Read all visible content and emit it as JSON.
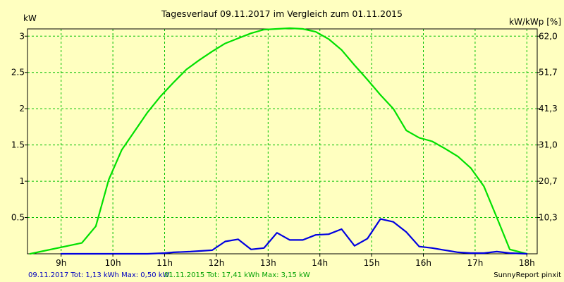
{
  "chart_data": {
    "type": "line",
    "title": "Tagesverlauf 09.11.2017 im Vergleich zum 01.11.2015",
    "ylabel_left": "kW",
    "ylabel_right": "kW/kWp [%]",
    "xlim": [
      8.35,
      18.2
    ],
    "ylim": [
      0,
      3.1
    ],
    "grid": true,
    "x_ticks": [
      {
        "value": 9,
        "label": "9h"
      },
      {
        "value": 10,
        "label": "10h"
      },
      {
        "value": 11,
        "label": "11h"
      },
      {
        "value": 12,
        "label": "12h"
      },
      {
        "value": 13,
        "label": "13h"
      },
      {
        "value": 14,
        "label": "14h"
      },
      {
        "value": 15,
        "label": "15h"
      },
      {
        "value": 16,
        "label": "16h"
      },
      {
        "value": 17,
        "label": "17h"
      },
      {
        "value": 18,
        "label": "18h"
      }
    ],
    "y_ticks_left": [
      {
        "value": 0.5,
        "label": "0.5"
      },
      {
        "value": 1,
        "label": "1"
      },
      {
        "value": 1.5,
        "label": "1.5"
      },
      {
        "value": 2,
        "label": "2"
      },
      {
        "value": 2.5,
        "label": "2.5"
      },
      {
        "value": 3,
        "label": "3"
      }
    ],
    "y_ticks_right": [
      {
        "value": 0.5,
        "label": "10,3"
      },
      {
        "value": 1,
        "label": "20,7"
      },
      {
        "value": 1.5,
        "label": "31,0"
      },
      {
        "value": 2,
        "label": "41,3"
      },
      {
        "value": 2.5,
        "label": "51,7"
      },
      {
        "value": 3,
        "label": "62,0"
      }
    ],
    "series": [
      {
        "color": "#00E000",
        "x": [
          8.4,
          9.4,
          9.67,
          9.92,
          10.17,
          10.42,
          10.67,
          10.92,
          11.17,
          11.42,
          11.67,
          11.92,
          12.17,
          12.42,
          12.67,
          12.92,
          13.17,
          13.42,
          13.67,
          13.92,
          14.17,
          14.42,
          14.67,
          14.92,
          15.17,
          15.42,
          15.67,
          15.92,
          16.17,
          16.42,
          16.67,
          16.92,
          17.17,
          17.42,
          17.67,
          18.0
        ],
        "y": [
          0.0,
          0.15,
          0.38,
          1.02,
          1.43,
          1.69,
          1.95,
          2.17,
          2.36,
          2.54,
          2.67,
          2.79,
          2.9,
          2.97,
          3.04,
          3.09,
          3.1,
          3.11,
          3.1,
          3.06,
          2.96,
          2.81,
          2.6,
          2.4,
          2.19,
          2.0,
          1.7,
          1.6,
          1.55,
          1.45,
          1.34,
          1.18,
          0.93,
          0.5,
          0.06,
          0.0
        ]
      },
      {
        "color": "#0000E0",
        "x": [
          9.0,
          9.5,
          10.0,
          10.5,
          10.67,
          11.0,
          11.17,
          11.5,
          11.92,
          12.17,
          12.42,
          12.67,
          12.92,
          13.17,
          13.42,
          13.67,
          13.92,
          14.17,
          14.42,
          14.67,
          14.92,
          15.17,
          15.42,
          15.67,
          15.92,
          16.17,
          16.42,
          16.67,
          16.92,
          17.17,
          17.42,
          17.67,
          18.0
        ],
        "y": [
          0.0,
          0.0,
          0.0,
          0.0,
          0.0,
          0.01,
          0.02,
          0.03,
          0.05,
          0.17,
          0.2,
          0.06,
          0.08,
          0.29,
          0.19,
          0.19,
          0.26,
          0.27,
          0.34,
          0.11,
          0.21,
          0.48,
          0.44,
          0.3,
          0.1,
          0.08,
          0.05,
          0.02,
          0.01,
          0.01,
          0.03,
          0.01,
          0.0
        ]
      }
    ],
    "footer_blue": "09.11.2017 Tot: 1,13 kWh Max: 0,50 kW",
    "footer_green": "01.11.2015 Tot: 17,41 kWh Max: 3,15 kW",
    "credit": "SunnyReport pinxit",
    "colors": {
      "background": "#FFFFC0",
      "grid": "#00C000",
      "axis": "#000000",
      "footer_blue": "#0000C0",
      "footer_green": "#00A000"
    }
  }
}
